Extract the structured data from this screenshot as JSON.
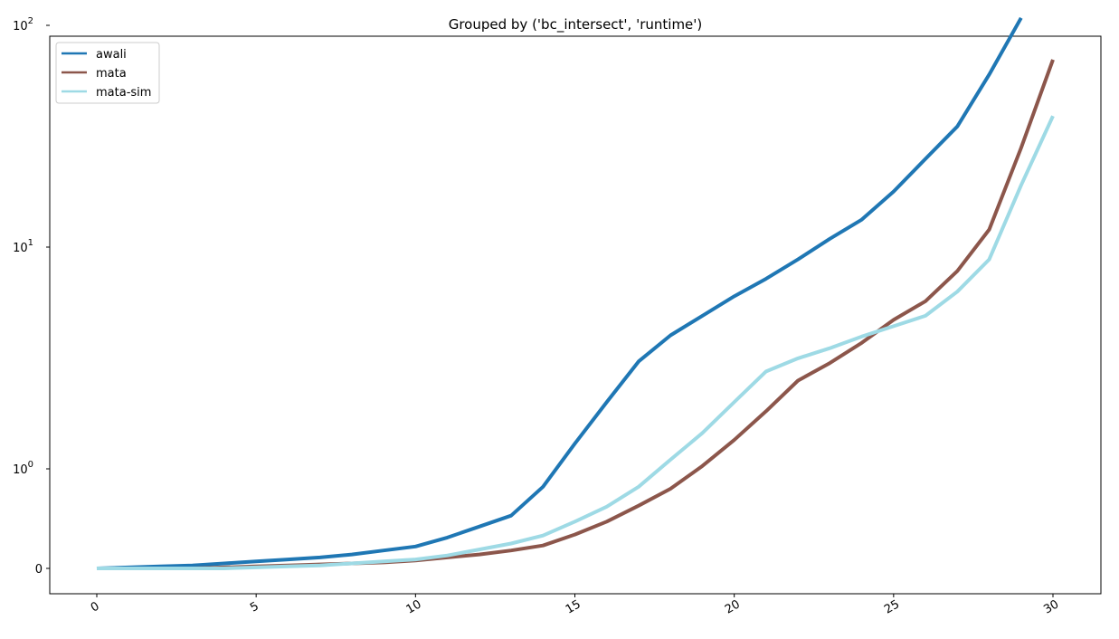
{
  "chart_data": {
    "type": "line",
    "title": "Grouped by ('bc_intersect', 'runtime')",
    "xlabel": "",
    "ylabel": "",
    "xlim": [
      -1.5,
      31.5
    ],
    "y_scale": "symlog",
    "x_ticks": [
      0,
      5,
      10,
      15,
      20,
      25,
      30
    ],
    "y_ticks": [
      {
        "value": 0,
        "base": "0",
        "exp": ""
      },
      {
        "value": 1,
        "base": "10",
        "exp": "0"
      },
      {
        "value": 10,
        "base": "10",
        "exp": "1"
      },
      {
        "value": 100,
        "base": "10",
        "exp": "2"
      }
    ],
    "legend_position": "top-left",
    "grid": false,
    "series": [
      {
        "name": "awali",
        "color": "#1f77b4",
        "x": [
          0,
          1,
          2,
          3,
          4,
          5,
          6,
          7,
          8,
          9,
          10,
          11,
          12,
          13,
          14,
          15,
          16,
          17,
          18,
          19,
          20,
          21,
          22,
          23,
          24,
          25,
          26,
          27,
          28,
          29
        ],
        "y": [
          0.0,
          0.01,
          0.02,
          0.03,
          0.05,
          0.07,
          0.09,
          0.11,
          0.14,
          0.18,
          0.22,
          0.31,
          0.42,
          0.53,
          0.82,
          1.3,
          2.0,
          3.05,
          4.0,
          4.9,
          6.0,
          7.2,
          8.8,
          10.9,
          13.3,
          17.8,
          25.0,
          35.0,
          60.0,
          108.0
        ]
      },
      {
        "name": "mata",
        "color": "#8c564b",
        "x": [
          0,
          1,
          2,
          3,
          4,
          5,
          6,
          7,
          8,
          9,
          10,
          11,
          12,
          13,
          14,
          15,
          16,
          17,
          18,
          19,
          20,
          21,
          22,
          23,
          24,
          25,
          26,
          27,
          28,
          29,
          30
        ],
        "y": [
          0.0,
          0.0,
          0.0,
          0.0,
          0.01,
          0.02,
          0.03,
          0.04,
          0.05,
          0.06,
          0.08,
          0.11,
          0.14,
          0.18,
          0.23,
          0.34,
          0.47,
          0.63,
          0.8,
          1.03,
          1.35,
          1.82,
          2.5,
          3.0,
          3.7,
          4.7,
          5.7,
          7.8,
          12.0,
          28.0,
          70.0
        ]
      },
      {
        "name": "mata-sim",
        "color": "#9edae5",
        "x": [
          0,
          1,
          2,
          3,
          4,
          5,
          6,
          7,
          8,
          9,
          10,
          11,
          12,
          13,
          14,
          15,
          16,
          17,
          18,
          19,
          20,
          21,
          22,
          23,
          24,
          25,
          26,
          27,
          28,
          29,
          30
        ],
        "y": [
          0.0,
          0.0,
          0.0,
          0.0,
          0.0,
          0.01,
          0.02,
          0.03,
          0.05,
          0.07,
          0.09,
          0.13,
          0.19,
          0.25,
          0.33,
          0.47,
          0.62,
          0.82,
          1.1,
          1.45,
          2.0,
          2.75,
          3.15,
          3.5,
          3.95,
          4.4,
          4.9,
          6.3,
          8.8,
          19.0,
          39.0
        ]
      }
    ]
  }
}
